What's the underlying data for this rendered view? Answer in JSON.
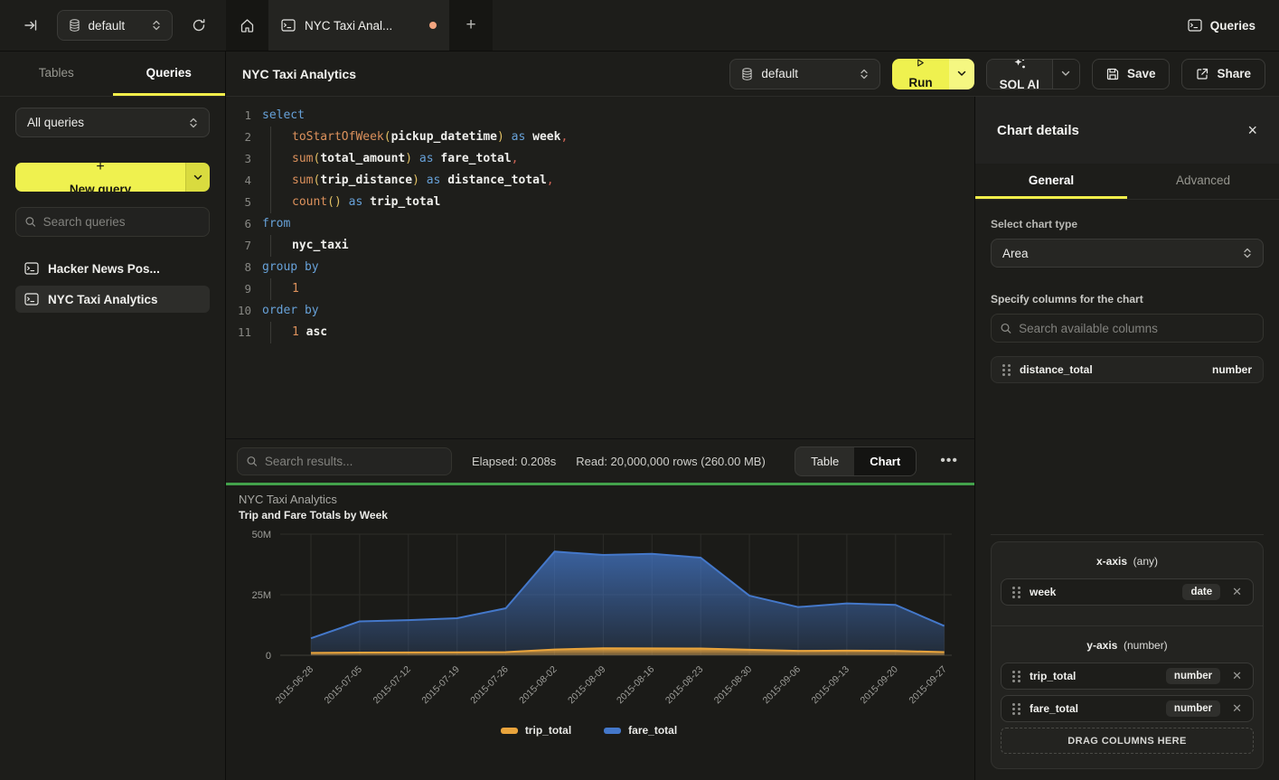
{
  "topbar": {
    "database": "default",
    "tab_label": "NYC Taxi Anal...",
    "new_tab": "+",
    "queries_button": "Queries",
    "unsaved_dot_color": "#f2a47f"
  },
  "sidebar": {
    "tabs": [
      {
        "label": "Tables"
      },
      {
        "label": "Queries"
      }
    ],
    "filter_value": "All queries",
    "new_query_label": "New query",
    "new_query_plus": "+",
    "search_placeholder": "Search queries",
    "items": [
      {
        "label": "Hacker News Pos..."
      },
      {
        "label": "NYC Taxi Analytics"
      }
    ]
  },
  "header": {
    "title": "NYC Taxi Analytics",
    "database": "default",
    "run_label": "Run",
    "sql_ai_label": "SQL AI",
    "save_label": "Save",
    "share_label": "Share"
  },
  "editor": {
    "lines": [
      {
        "n": "1",
        "tokens": [
          {
            "c": "kw",
            "t": "select"
          }
        ]
      },
      {
        "n": "2",
        "tokens": [
          {
            "c": "ind",
            "t": ""
          },
          {
            "c": "fn",
            "t": "toStartOfWeek"
          },
          {
            "c": "par",
            "t": "("
          },
          {
            "c": "id",
            "t": "pickup_datetime"
          },
          {
            "c": "par",
            "t": ")"
          },
          {
            "c": "pl",
            "t": " "
          },
          {
            "c": "kw",
            "t": "as"
          },
          {
            "c": "pl",
            "t": " "
          },
          {
            "c": "id",
            "t": "week"
          },
          {
            "c": "com",
            "t": ","
          }
        ]
      },
      {
        "n": "3",
        "tokens": [
          {
            "c": "ind",
            "t": ""
          },
          {
            "c": "fn",
            "t": "sum"
          },
          {
            "c": "par",
            "t": "("
          },
          {
            "c": "id",
            "t": "total_amount"
          },
          {
            "c": "par",
            "t": ")"
          },
          {
            "c": "pl",
            "t": " "
          },
          {
            "c": "kw",
            "t": "as"
          },
          {
            "c": "pl",
            "t": " "
          },
          {
            "c": "id",
            "t": "fare_total"
          },
          {
            "c": "com",
            "t": ","
          }
        ]
      },
      {
        "n": "4",
        "tokens": [
          {
            "c": "ind",
            "t": ""
          },
          {
            "c": "fn",
            "t": "sum"
          },
          {
            "c": "par",
            "t": "("
          },
          {
            "c": "id",
            "t": "trip_distance"
          },
          {
            "c": "par",
            "t": ")"
          },
          {
            "c": "pl",
            "t": " "
          },
          {
            "c": "kw",
            "t": "as"
          },
          {
            "c": "pl",
            "t": " "
          },
          {
            "c": "id",
            "t": "distance_total"
          },
          {
            "c": "com",
            "t": ","
          }
        ]
      },
      {
        "n": "5",
        "tokens": [
          {
            "c": "ind",
            "t": ""
          },
          {
            "c": "fn",
            "t": "count"
          },
          {
            "c": "par",
            "t": "()"
          },
          {
            "c": "pl",
            "t": " "
          },
          {
            "c": "kw",
            "t": "as"
          },
          {
            "c": "pl",
            "t": " "
          },
          {
            "c": "id",
            "t": "trip_total"
          }
        ]
      },
      {
        "n": "6",
        "tokens": [
          {
            "c": "kw",
            "t": "from"
          }
        ]
      },
      {
        "n": "7",
        "tokens": [
          {
            "c": "ind",
            "t": ""
          },
          {
            "c": "id",
            "t": "nyc_taxi"
          }
        ]
      },
      {
        "n": "8",
        "tokens": [
          {
            "c": "kw",
            "t": "group by"
          }
        ]
      },
      {
        "n": "9",
        "tokens": [
          {
            "c": "ind",
            "t": ""
          },
          {
            "c": "num",
            "t": "1"
          }
        ]
      },
      {
        "n": "10",
        "tokens": [
          {
            "c": "kw",
            "t": "order by"
          }
        ]
      },
      {
        "n": "11",
        "tokens": [
          {
            "c": "ind",
            "t": ""
          },
          {
            "c": "num",
            "t": "1"
          },
          {
            "c": "pl",
            "t": " "
          },
          {
            "c": "id",
            "t": "asc"
          }
        ]
      }
    ]
  },
  "results": {
    "search_placeholder": "Search results...",
    "elapsed": "Elapsed: 0.208s",
    "read": "Read: 20,000,000 rows (260.00 MB)",
    "view_toggle": [
      "Table",
      "Chart"
    ],
    "active_view": "Chart",
    "more_label": "•••"
  },
  "chart_data": {
    "type": "area",
    "title": "NYC Taxi Analytics",
    "subtitle": "Trip and Fare Totals by Week",
    "x": [
      "2015-06-28",
      "2015-07-05",
      "2015-07-12",
      "2015-07-19",
      "2015-07-26",
      "2015-08-02",
      "2015-08-09",
      "2015-08-16",
      "2015-08-23",
      "2015-08-30",
      "2015-09-06",
      "2015-09-13",
      "2015-09-20",
      "2015-09-27"
    ],
    "unit": "millions",
    "ylim": [
      0,
      50
    ],
    "yticks": [
      {
        "value": 0,
        "label": "0"
      },
      {
        "value": 25,
        "label": "25M"
      },
      {
        "value": 50,
        "label": "50M"
      }
    ],
    "grid": true,
    "legend_position": "bottom",
    "series": [
      {
        "name": "trip_total",
        "color": "#e9a43c",
        "values": [
          1.0,
          1.1,
          1.15,
          1.2,
          1.3,
          2.4,
          2.9,
          2.85,
          2.8,
          2.3,
          1.8,
          1.9,
          1.8,
          1.3
        ]
      },
      {
        "name": "fare_total",
        "color": "#4478ca",
        "values": [
          7,
          14,
          14.5,
          15.3,
          19.4,
          42.8,
          41.4,
          41.9,
          40.3,
          24.6,
          19.9,
          21.4,
          20.8,
          12.1
        ]
      }
    ]
  },
  "chart_panel": {
    "title": "Chart details",
    "close_label": "×",
    "tabs": [
      {
        "label": "General"
      },
      {
        "label": "Advanced"
      }
    ],
    "chart_type_label": "Select chart type",
    "chart_type_value": "Area",
    "columns_label": "Specify columns for the chart",
    "search_placeholder": "Search available columns",
    "available_columns": [
      {
        "name": "distance_total",
        "type": "number"
      }
    ],
    "x_axis": {
      "label": "x-axis",
      "hint": "(any)",
      "items": [
        {
          "name": "week",
          "type": "date"
        }
      ]
    },
    "y_axis": {
      "label": "y-axis",
      "hint": "(number)",
      "items": [
        {
          "name": "trip_total",
          "type": "number"
        },
        {
          "name": "fare_total",
          "type": "number"
        }
      ]
    },
    "drop_label": "DRAG COLUMNS HERE"
  }
}
